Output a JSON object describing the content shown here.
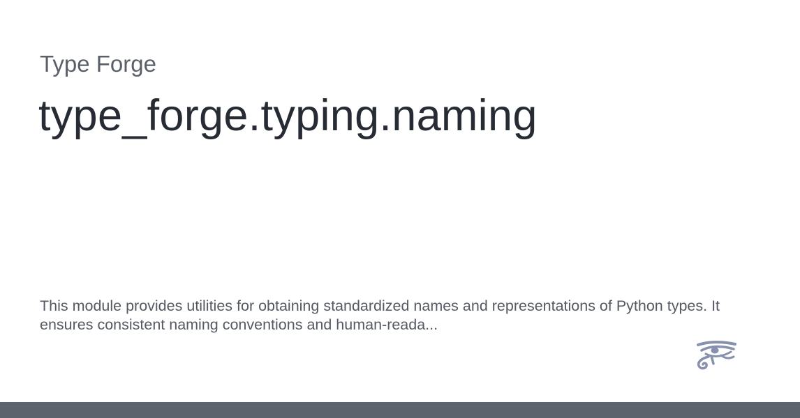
{
  "site": {
    "name": "Type Forge"
  },
  "page": {
    "title": "type_forge.typing.naming",
    "description": "This module provides utilities for obtaining standardized names and representations of Python types. It ensures consistent naming conventions and human-reada..."
  },
  "logo": {
    "icon": "eye-of-horus-icon",
    "color": "#8791ad"
  },
  "footer": {
    "color": "#5d636c"
  }
}
